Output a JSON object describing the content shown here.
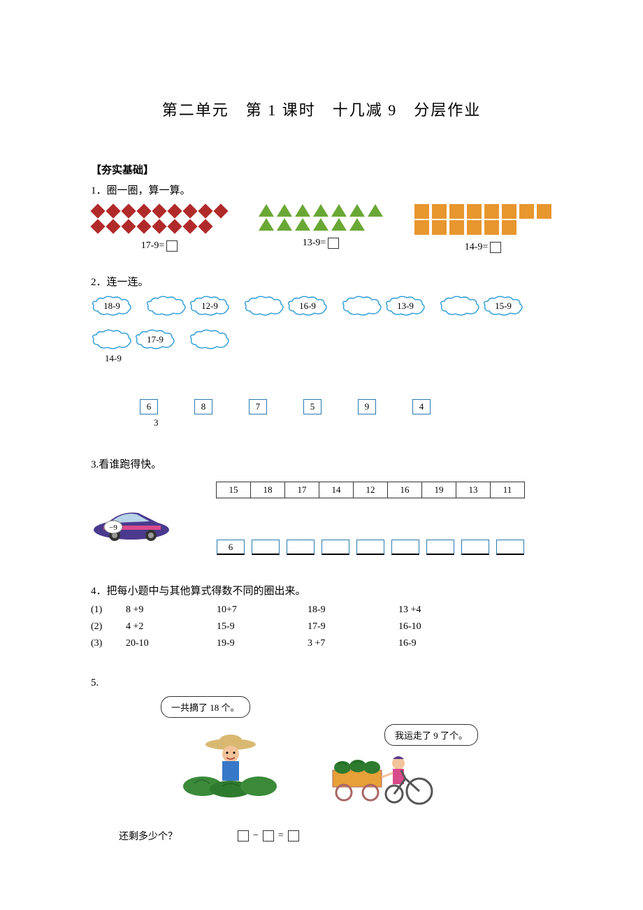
{
  "title": "第二单元　第 1 课时　十几减 9　分层作业",
  "section1_header": "【夯实基础】",
  "q1": {
    "prompt": "1．圈一圈，算一算。",
    "groups": [
      {
        "shape": "diamond",
        "color": "#b12a2a",
        "rows": [
          9,
          8
        ],
        "equation": "17-9="
      },
      {
        "shape": "triangle",
        "color": "#6aa836",
        "rows": [
          7,
          6
        ],
        "equation": "13-9="
      },
      {
        "shape": "square",
        "color": "#e8962e",
        "rows": [
          8,
          6
        ],
        "equation": "14-9="
      }
    ]
  },
  "q2": {
    "prompt": "2．连一连。",
    "clouds": [
      "18-9",
      "12-9",
      "16-9",
      "13-9",
      "15-9",
      "17-9"
    ],
    "extra_cloud": "14-9",
    "boxes": [
      "6",
      "8",
      "7",
      "5",
      "9",
      "4"
    ],
    "extra_num": "3",
    "cloud_color": "#2a9bd6"
  },
  "q3": {
    "prompt": "3.看谁跑得快。",
    "car_label": "−9",
    "top_row": [
      "15",
      "18",
      "17",
      "14",
      "12",
      "16",
      "19",
      "13",
      "11"
    ],
    "bottom_first": "6",
    "bottom_count": 9,
    "car_colors": {
      "body": "#4a3a8e",
      "stripe": "#d94a8c",
      "wheel": "#333333",
      "badge_bg": "#ffffff",
      "badge_border": "#777777"
    }
  },
  "q4": {
    "prompt": "4．把每小题中与其他算式得数不同的圈出来。",
    "rows": [
      {
        "label": "(1)",
        "items": [
          "8 +9",
          "10+7",
          "18-9",
          "13 +4"
        ]
      },
      {
        "label": "(2)",
        "items": [
          "4 +2",
          "15-9",
          "17-9",
          "16-10"
        ]
      },
      {
        "label": "(3)",
        "items": [
          "20-10",
          "19-9",
          "3 +7",
          "16-9"
        ]
      }
    ]
  },
  "q5": {
    "prompt": "5.",
    "bubble1": "一共摘了 18 个。",
    "bubble2": "我运走了 9 了个。",
    "question": "还剩多少个？",
    "eq_parts": [
      "−",
      "="
    ]
  }
}
